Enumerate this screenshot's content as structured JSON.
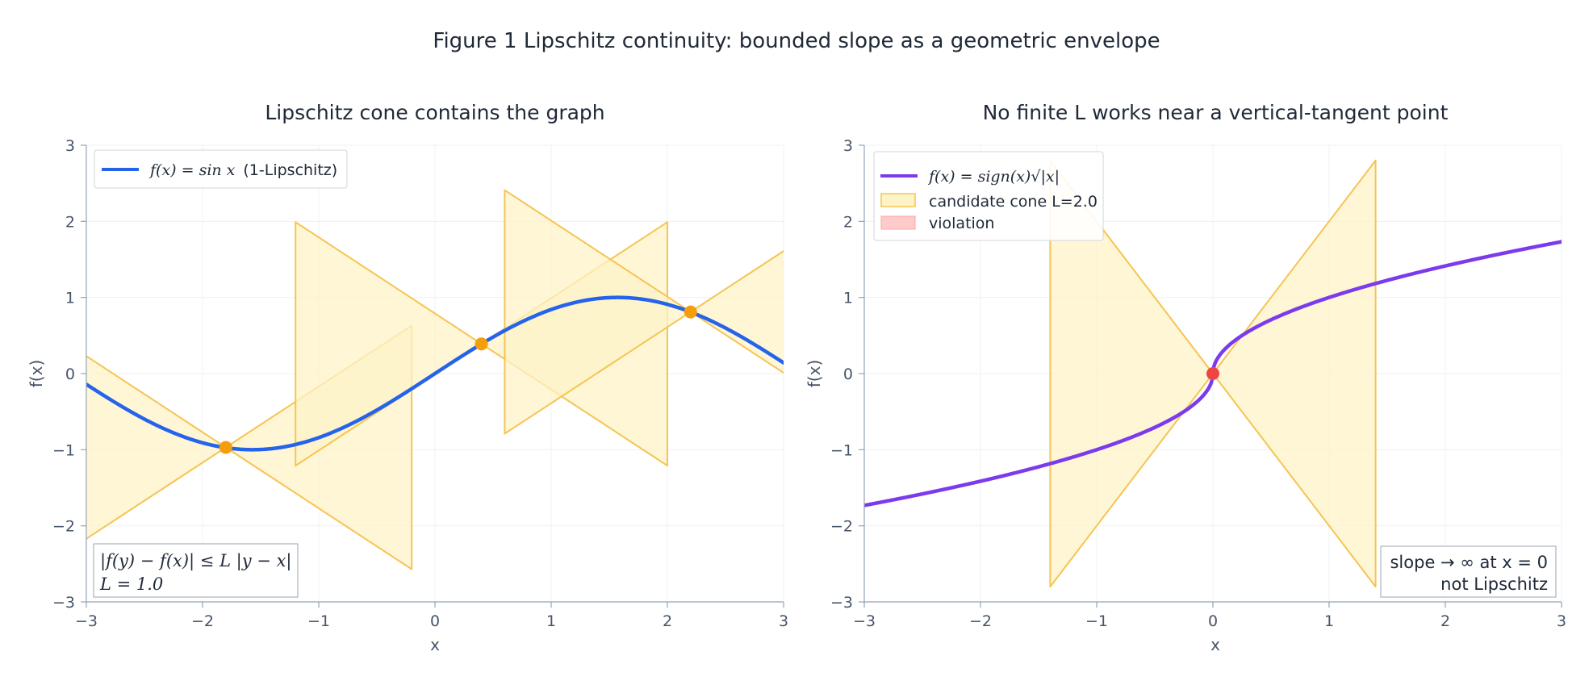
{
  "figure_title": "Figure 1  Lipschitz continuity: bounded slope as a geometric envelope",
  "colors": {
    "curve_left": "#2563eb",
    "curve_right": "#7c3aed",
    "cone_fill": "#fef3c7",
    "cone_stroke": "#f6c453",
    "point_left": "#f59e0b",
    "point_right": "#ef4444",
    "violation_fill": "#fecaca",
    "violation_stroke": "#f87171",
    "grid": "#eef0f4",
    "axis": "#94a3b8"
  },
  "chart_data": [
    {
      "type": "line",
      "title": "Lipschitz cone contains the graph",
      "xlabel": "x",
      "ylabel": "f(x)",
      "xlim": [
        -3,
        3
      ],
      "ylim": [
        -3,
        3
      ],
      "xticks": [
        "−3",
        "−2",
        "−1",
        "0",
        "1",
        "2",
        "3"
      ],
      "yticks": [
        "3",
        "2",
        "1",
        "0",
        "−1",
        "−2",
        "−3"
      ],
      "grid": true,
      "legend_position": "top-left",
      "series": [
        {
          "name": "f(x) = sin x  (1-Lipschitz)",
          "legend_math": "f(x) = sin x",
          "legend_suffix": "(1-Lipschitz)",
          "function": "sin"
        }
      ],
      "lipschitz_constant": 1.0,
      "cone_half_width": 1.6,
      "anchor_points": [
        {
          "x": -1.8,
          "y": -0.97
        },
        {
          "x": 0.4,
          "y": 0.39
        },
        {
          "x": 2.2,
          "y": 0.81
        }
      ],
      "annotation": {
        "line1": "|f(y) − f(x)| ≤ L |y − x|",
        "line2": "L = 1.0",
        "position": "bottom-left"
      }
    },
    {
      "type": "line",
      "title": "No finite L works near a vertical-tangent point",
      "xlabel": "x",
      "ylabel": "f(x)",
      "xlim": [
        -3,
        3
      ],
      "ylim": [
        -3,
        3
      ],
      "xticks": [
        "−3",
        "−2",
        "−1",
        "0",
        "1",
        "2",
        "3"
      ],
      "yticks": [
        "3",
        "2",
        "1",
        "0",
        "−1",
        "−2",
        "−3"
      ],
      "grid": true,
      "legend_position": "top-left",
      "series": [
        {
          "name": "f(x) = sign(x)√|x|",
          "legend_math": "f(x) = sign(x)√|x|",
          "function": "signed_sqrt"
        }
      ],
      "legend_extra": [
        {
          "label": "candidate cone L=2.0",
          "kind": "cone"
        },
        {
          "label": "violation",
          "kind": "violation"
        }
      ],
      "lipschitz_constant": 2.0,
      "cone_half_width": 1.4,
      "anchor_points": [
        {
          "x": 0,
          "y": 0
        }
      ],
      "annotation": {
        "line1": "slope → ∞ at x = 0",
        "line2": "not Lipschitz",
        "position": "bottom-right"
      }
    }
  ]
}
